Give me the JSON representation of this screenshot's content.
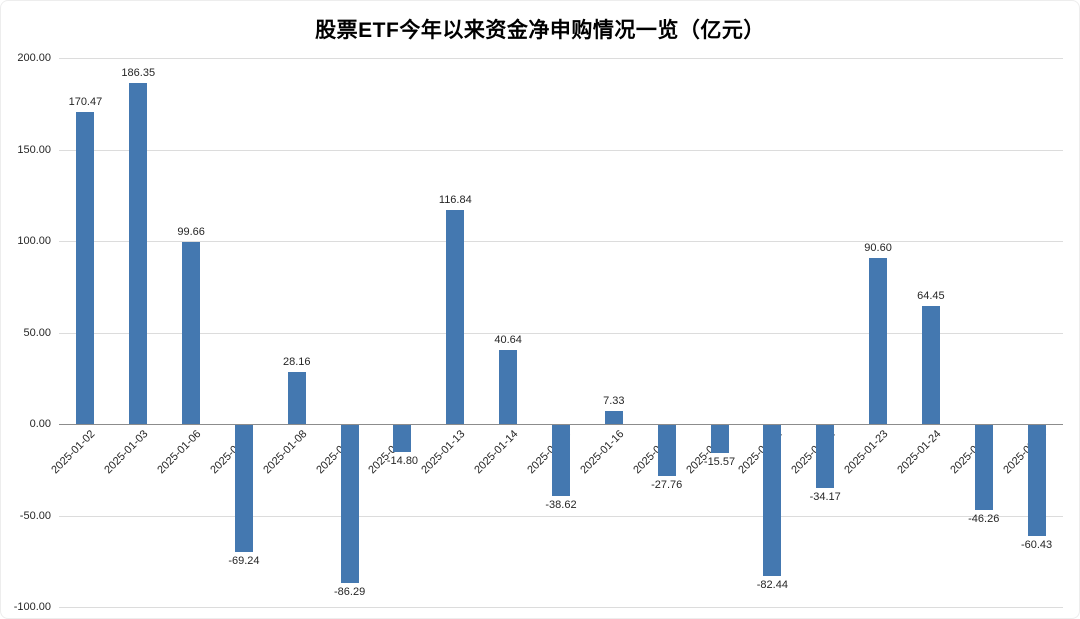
{
  "chart_data": {
    "type": "bar",
    "title": "股票ETF今年以来资金净申购情况一览（亿元）",
    "unit": "亿元",
    "categories": [
      "2025-01-02",
      "2025-01-03",
      "2025-01-06",
      "2025-01-07",
      "2025-01-08",
      "2025-01-09",
      "2025-01-10",
      "2025-01-13",
      "2025-01-14",
      "2025-01-15",
      "2025-01-16",
      "2025-01-17",
      "2025-01-20",
      "2025-01-21",
      "2025-01-22",
      "2025-01-23",
      "2025-01-24",
      "2025-01-27",
      "2025-02-05"
    ],
    "values": [
      170.47,
      186.35,
      99.66,
      -69.24,
      28.16,
      -86.29,
      -14.8,
      116.84,
      40.64,
      -38.62,
      7.33,
      -27.76,
      -15.57,
      -82.44,
      -34.17,
      90.6,
      64.45,
      -46.26,
      -60.43
    ],
    "ylim": [
      -100,
      200
    ],
    "ytick_step": 50,
    "yticks": [
      "200.00",
      "150.00",
      "100.00",
      "50.00",
      "0.00",
      "-50.00",
      "-100.00"
    ],
    "value_label_decimals": 2,
    "grid": true,
    "legend": "none",
    "xlabel": "",
    "ylabel": ""
  },
  "colors": {
    "bar": "#4478b0",
    "grid": "#dcdcdc",
    "zero_axis": "#8c8c8c",
    "text": "#262626",
    "background": "#ffffff"
  }
}
